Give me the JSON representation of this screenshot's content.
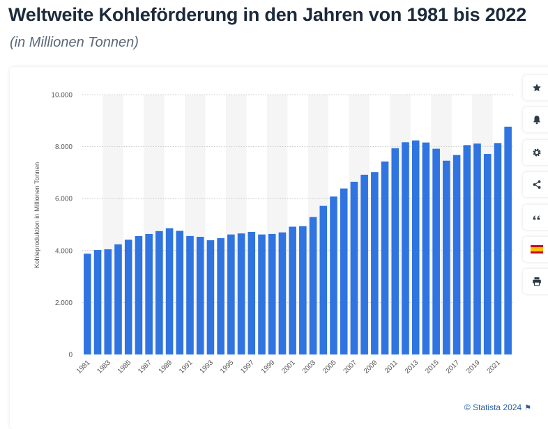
{
  "header": {
    "title": "Weltweite Kohleförderung in den Jahren von 1981 bis 2022",
    "subtitle": "(in Millionen Tonnen)"
  },
  "chart_data": {
    "type": "bar",
    "ylabel": "Kohleproduktion in Millionen Tonnen",
    "ylim": [
      0,
      10000
    ],
    "yticks": [
      0,
      2000,
      4000,
      6000,
      8000,
      10000
    ],
    "ytick_labels": [
      "0",
      "2.000",
      "4.000",
      "6.000",
      "8.000",
      "10.000"
    ],
    "grid": true,
    "bar_color": "#2f74e0",
    "categories": [
      "1981",
      "1982",
      "1983",
      "1984",
      "1985",
      "1986",
      "1987",
      "1988",
      "1989",
      "1990",
      "1991",
      "1992",
      "1993",
      "1994",
      "1995",
      "1996",
      "1997",
      "1998",
      "1999",
      "2000",
      "2001",
      "2002",
      "2003",
      "2004",
      "2005",
      "2006",
      "2007",
      "2008",
      "2009",
      "2010",
      "2011",
      "2012",
      "2013",
      "2014",
      "2015",
      "2016",
      "2017",
      "2018",
      "2019",
      "2020",
      "2021",
      "2022"
    ],
    "xtick_labels": [
      "1981",
      "1983",
      "1985",
      "1987",
      "1989",
      "1991",
      "1993",
      "1995",
      "1997",
      "1999",
      "2001",
      "2003",
      "2005",
      "2007",
      "2009",
      "2011",
      "2013",
      "2015",
      "2017",
      "2019",
      "2021"
    ],
    "values": [
      3880,
      4020,
      4050,
      4240,
      4420,
      4560,
      4640,
      4750,
      4860,
      4760,
      4560,
      4530,
      4400,
      4480,
      4620,
      4660,
      4720,
      4620,
      4640,
      4700,
      4920,
      4940,
      5290,
      5720,
      6080,
      6390,
      6650,
      6920,
      7020,
      7430,
      7940,
      8170,
      8240,
      8160,
      7920,
      7460,
      7680,
      8060,
      8120,
      7720,
      8140,
      8770
    ]
  },
  "toolbar": {
    "items": [
      {
        "name": "favorite-button",
        "icon": "star-icon"
      },
      {
        "name": "notification-button",
        "icon": "bell-icon"
      },
      {
        "name": "settings-button",
        "icon": "gear-icon"
      },
      {
        "name": "share-button",
        "icon": "share-icon"
      },
      {
        "name": "cite-button",
        "icon": "quote-icon"
      },
      {
        "name": "language-button",
        "icon": "spain-flag-icon"
      },
      {
        "name": "print-button",
        "icon": "printer-icon"
      }
    ]
  },
  "footer": {
    "copyright": "© Statista 2024",
    "flag_icon": "flag-icon"
  },
  "colors": {
    "title": "#1c2a3a",
    "subtitle": "#5a6878",
    "bar": "#2f74e0",
    "alt_band": "#f5f5f5",
    "link": "#2c5f9e"
  }
}
